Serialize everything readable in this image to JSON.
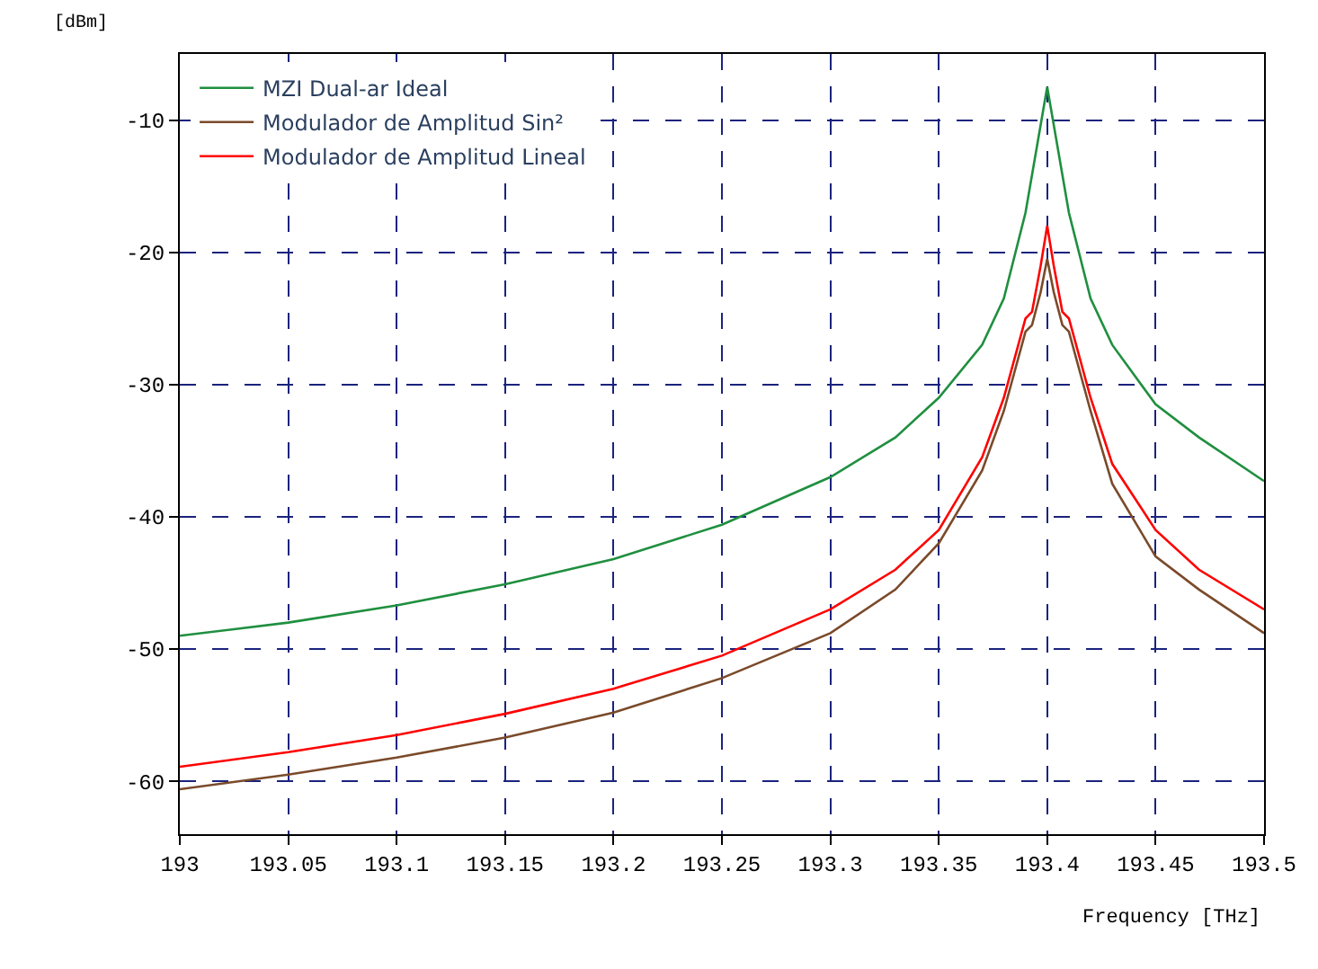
{
  "chart_data": {
    "type": "line",
    "xlabel": "Frequency [THz]",
    "ylabel": "[dBm]",
    "xlim": [
      193,
      193.5
    ],
    "xticks": [
      193,
      193.05,
      193.1,
      193.15,
      193.2,
      193.25,
      193.3,
      193.35,
      193.4,
      193.45,
      193.5
    ],
    "ylim": [
      -64,
      -5
    ],
    "yticks": [
      -10,
      -20,
      -30,
      -40,
      -50,
      -60
    ],
    "grid": true,
    "legend": "top left",
    "marker": "none",
    "line_style": "solid",
    "series": [
      {
        "name": "MZI Dual-ar Ideal",
        "color": "#1f8f3f",
        "x": [
          193,
          193.05,
          193.1,
          193.15,
          193.2,
          193.25,
          193.3,
          193.33,
          193.35,
          193.37,
          193.38,
          193.39,
          193.4,
          193.41,
          193.42,
          193.43,
          193.45,
          193.47,
          193.5
        ],
        "values": [
          -49,
          -48,
          -46.7,
          -45.1,
          -43.2,
          -40.6,
          -37,
          -34,
          -31,
          -27,
          -23.5,
          -17,
          -7.5,
          -17,
          -23.5,
          -27,
          -31.5,
          -34,
          -37.3
        ]
      },
      {
        "name": "Modulador de Amplitud Sin²",
        "color": "#7a4a2a",
        "x": [
          193,
          193.05,
          193.1,
          193.15,
          193.2,
          193.25,
          193.3,
          193.33,
          193.35,
          193.37,
          193.38,
          193.39,
          193.393,
          193.397,
          193.4,
          193.403,
          193.407,
          193.41,
          193.42,
          193.43,
          193.45,
          193.47,
          193.5
        ],
        "values": [
          -60.6,
          -59.5,
          -58.2,
          -56.7,
          -54.8,
          -52.2,
          -48.8,
          -45.5,
          -42,
          -36.5,
          -32,
          -26,
          -25.5,
          -23,
          -20.5,
          -23,
          -25.5,
          -26,
          -32,
          -37.5,
          -43,
          -45.5,
          -48.8
        ]
      },
      {
        "name": "Modulador de Amplitud Lineal",
        "color": "#ff0000",
        "x": [
          193,
          193.05,
          193.1,
          193.15,
          193.2,
          193.25,
          193.3,
          193.33,
          193.35,
          193.37,
          193.38,
          193.39,
          193.393,
          193.397,
          193.4,
          193.403,
          193.407,
          193.41,
          193.42,
          193.43,
          193.45,
          193.47,
          193.5
        ],
        "values": [
          -58.9,
          -57.8,
          -56.5,
          -54.9,
          -53,
          -50.5,
          -47,
          -44,
          -41,
          -35.5,
          -31,
          -25,
          -24.5,
          -21,
          -18,
          -21,
          -24.5,
          -25,
          -31,
          -36,
          -41,
          -44,
          -47
        ]
      }
    ]
  }
}
